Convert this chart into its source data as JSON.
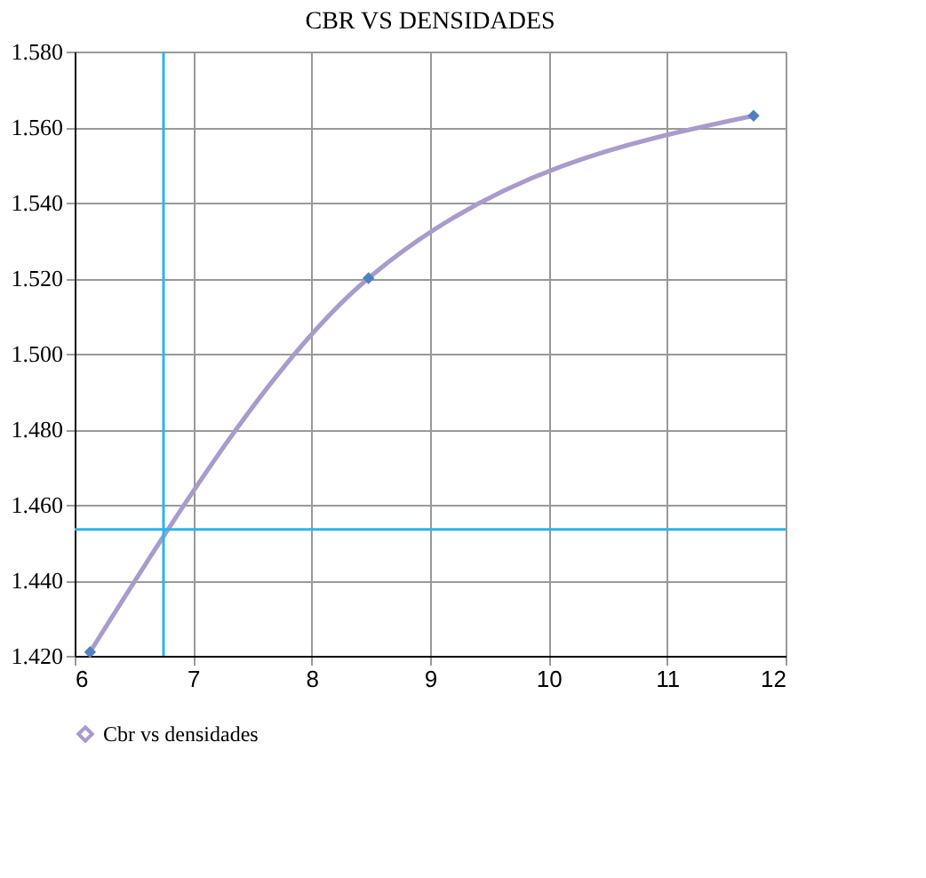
{
  "chart_data": {
    "type": "line",
    "title": "CBR VS DENSIDADES",
    "x": [
      6.13,
      8.48,
      11.73
    ],
    "series": [
      {
        "name": "Cbr vs densidades",
        "color": "#a99bcc",
        "values": [
          1.421,
          1.52,
          1.563
        ]
      }
    ],
    "xlim": [
      6,
      12
    ],
    "xticks": [
      6,
      7,
      8,
      9,
      10,
      11,
      12
    ],
    "ylim": [
      1.42,
      1.58
    ],
    "yticks": [
      {
        "value": 1.42,
        "label": "1.420"
      },
      {
        "value": 1.44,
        "label": "1.440"
      },
      {
        "value": 1.46,
        "label": "1.460"
      },
      {
        "value": 1.48,
        "label": "1.480"
      },
      {
        "value": 1.5,
        "label": "1.500"
      },
      {
        "value": 1.52,
        "label": "1.520"
      },
      {
        "value": 1.54,
        "label": "1.540"
      },
      {
        "value": 1.56,
        "label": "1.560"
      },
      {
        "value": 1.58,
        "label": "1.580"
      }
    ],
    "ref_lines": [
      {
        "axis": "x",
        "value": 6.75,
        "color": "#29b6e8"
      },
      {
        "axis": "y",
        "value": 1.4535,
        "color": "#29b6e8"
      }
    ],
    "grid": true,
    "legend": "bottom",
    "marker": "diamond",
    "line_style": "solid"
  }
}
